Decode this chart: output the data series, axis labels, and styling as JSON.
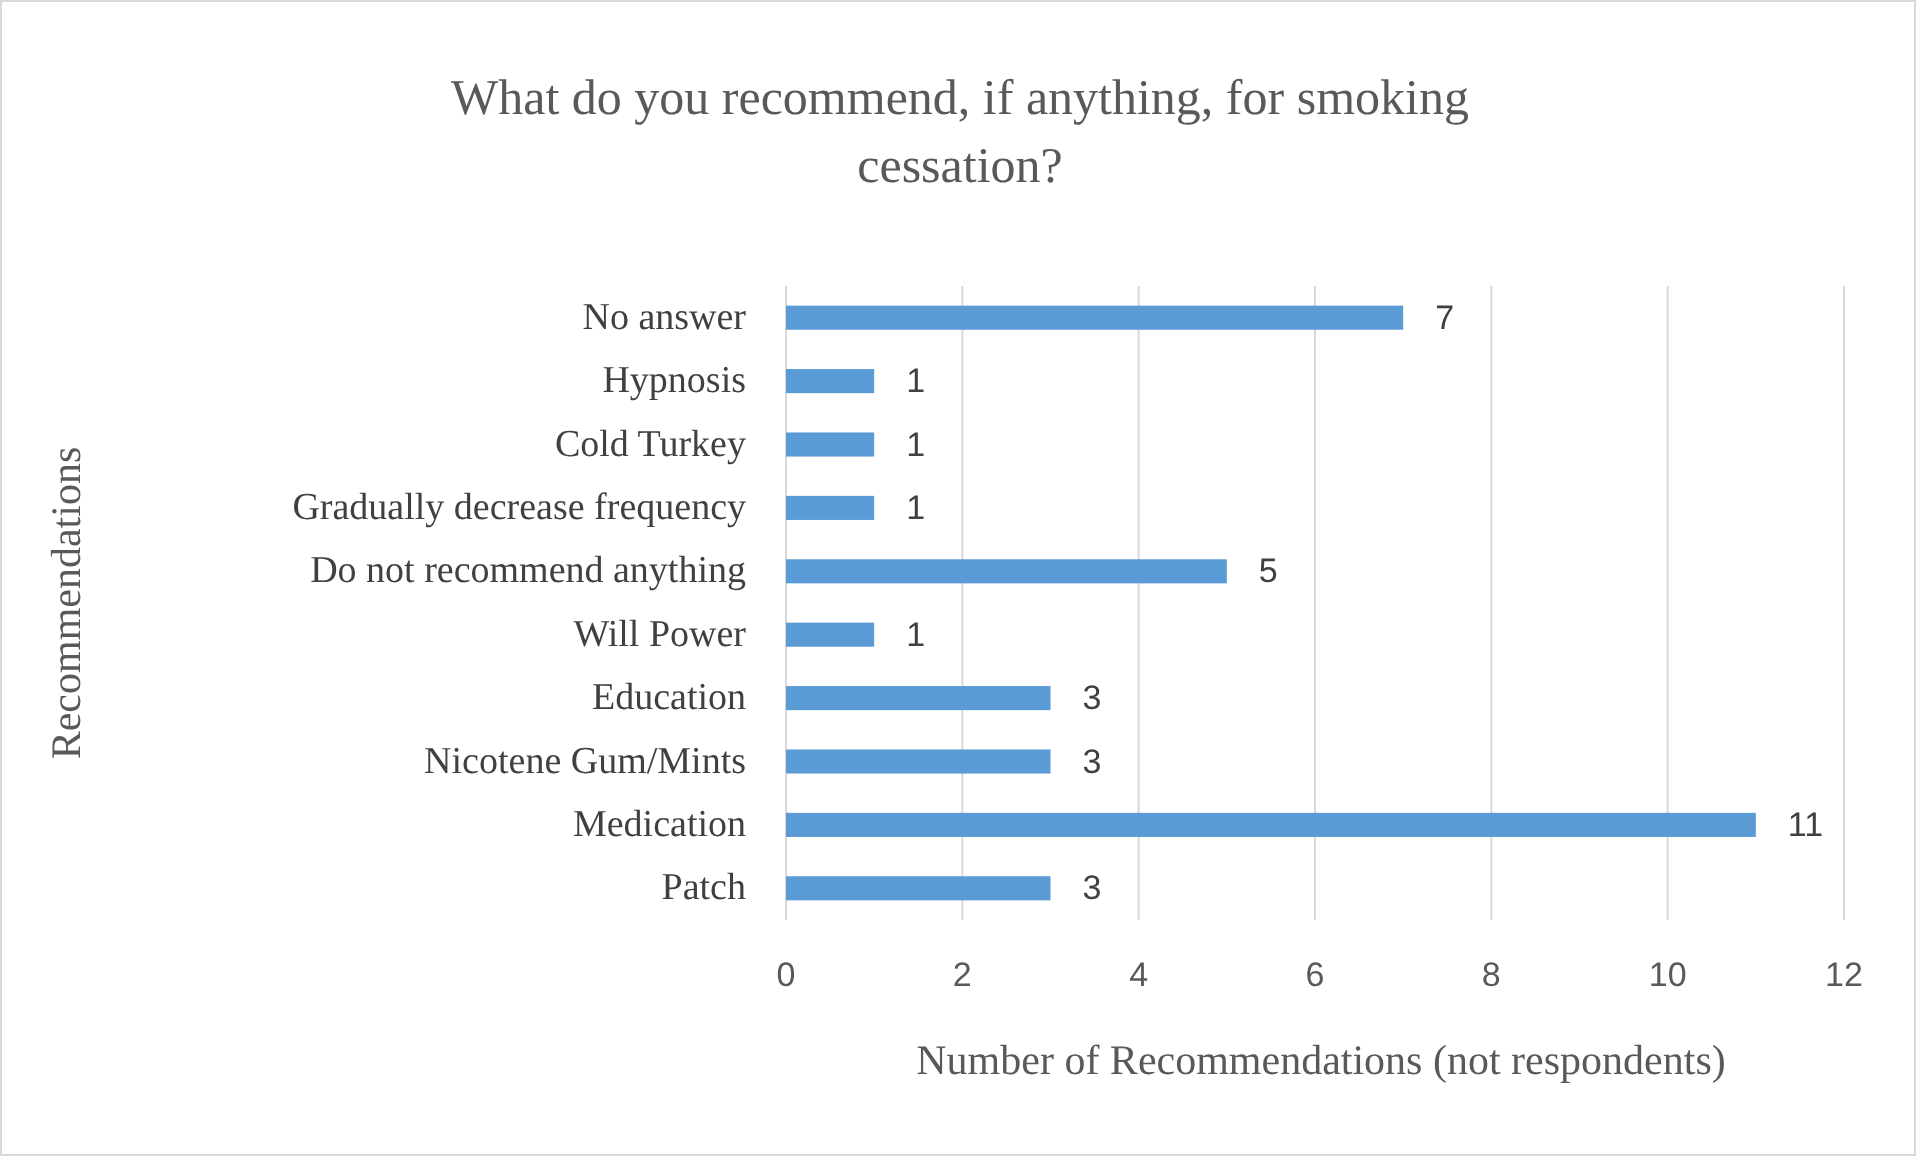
{
  "chart_data": {
    "type": "bar",
    "orientation": "horizontal",
    "title": "What do you recommend, if anything, for smoking cessation?",
    "xlabel": "Number of Recommendations (not respondents)",
    "ylabel": "Recommendations",
    "categories": [
      "No answer",
      "Hypnosis",
      "Cold Turkey",
      "Gradually decrease frequency",
      "Do not recommend anything",
      "Will Power",
      "Education",
      "Nicotene Gum/Mints",
      "Medication",
      "Patch"
    ],
    "values": [
      7,
      1,
      1,
      1,
      5,
      1,
      3,
      3,
      11,
      3
    ],
    "color": "#5b9bd5",
    "xlim": [
      0,
      12
    ],
    "xticks": [
      0,
      2,
      4,
      6,
      8,
      10,
      12
    ],
    "grid": "x",
    "data_labels": true
  }
}
